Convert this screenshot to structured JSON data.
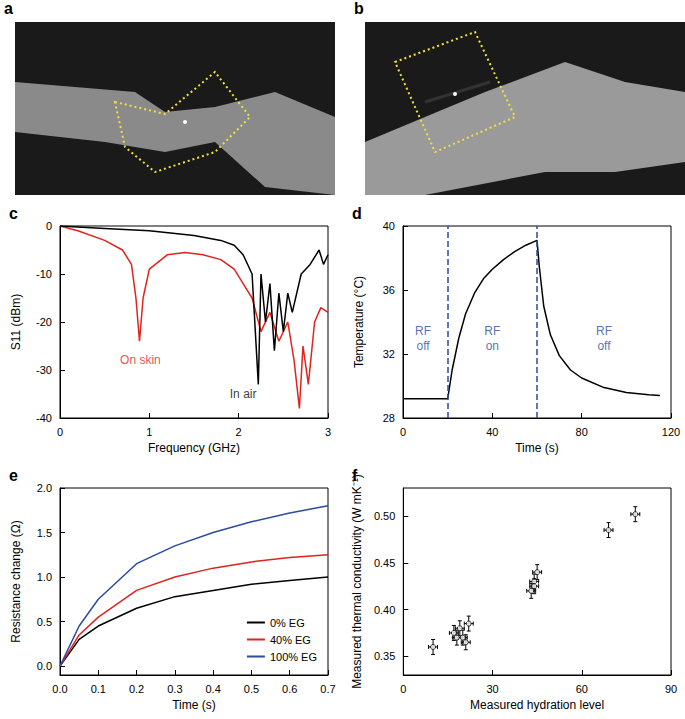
{
  "images": [
    {
      "panel": "a"
    },
    {
      "panel": "b"
    }
  ],
  "chart_data": [
    {
      "panel": "c",
      "type": "line",
      "x_label": "Frequency (GHz)",
      "y_label": "S11 (dBm)",
      "xlim": [
        0,
        3
      ],
      "xticks": [
        0,
        1,
        2,
        3
      ],
      "ylim": [
        -40,
        0
      ],
      "yticks": [
        0,
        -10,
        -20,
        -30,
        -40
      ],
      "grid": false,
      "series": [
        {
          "color": "#e0231c",
          "x": [
            0,
            0.2,
            0.5,
            0.7,
            0.8,
            0.85,
            0.89,
            0.93,
            1.0,
            1.2,
            1.4,
            1.6,
            1.8,
            1.95,
            2.05,
            2.15,
            2.25,
            2.35,
            2.45,
            2.55,
            2.62,
            2.68,
            2.72,
            2.78,
            2.85,
            2.92,
            3.0
          ],
          "values": [
            0,
            -1,
            -3,
            -5,
            -8,
            -15,
            -24,
            -15,
            -9,
            -6,
            -5.5,
            -6,
            -7,
            -9,
            -12,
            -15,
            -22,
            -18,
            -24,
            -20,
            -28,
            -38,
            -25,
            -33,
            -20,
            -17,
            -18
          ]
        },
        {
          "color": "#000000",
          "x": [
            0,
            0.5,
            1.0,
            1.5,
            1.8,
            1.95,
            2.05,
            2.15,
            2.22,
            2.25,
            2.3,
            2.35,
            2.4,
            2.45,
            2.5,
            2.55,
            2.6,
            2.7,
            2.8,
            2.9,
            2.95,
            3.0
          ],
          "values": [
            0,
            -0.5,
            -1,
            -2,
            -3,
            -4,
            -6,
            -10,
            -33,
            -10,
            -20,
            -12,
            -26,
            -14,
            -22,
            -14,
            -18,
            -10,
            -8,
            -5,
            -8,
            -6
          ]
        }
      ],
      "annotations": [
        {
          "text": "On skin",
          "x": 0.9,
          "y": -28,
          "color": "#e0231c"
        },
        {
          "text": "In air",
          "x": 2.05,
          "y": -35,
          "color": "#000000"
        }
      ]
    },
    {
      "panel": "d",
      "type": "line",
      "x_label": "Time (s)",
      "y_label": "Temperature (°C)",
      "xlim": [
        0,
        120
      ],
      "xticks": [
        0,
        40,
        80,
        120
      ],
      "ylim": [
        28,
        40
      ],
      "yticks": [
        28,
        32,
        36,
        40
      ],
      "grid": false,
      "series": [
        {
          "color": "#000000",
          "x": [
            0,
            10,
            20,
            22,
            25,
            28,
            32,
            36,
            40,
            45,
            50,
            55,
            60,
            61,
            63,
            66,
            70,
            75,
            80,
            90,
            100,
            110,
            115
          ],
          "values": [
            29.2,
            29.2,
            29.2,
            31,
            33,
            34.5,
            35.8,
            36.7,
            37.3,
            37.9,
            38.4,
            38.8,
            39.1,
            37.5,
            35,
            33.2,
            31.9,
            31,
            30.5,
            29.9,
            29.6,
            29.45,
            29.4
          ]
        }
      ],
      "vlines": [
        20,
        60
      ],
      "annotations": [
        {
          "text": "RF\noff",
          "x": 9,
          "y": 33,
          "color": "#2b4ba0"
        },
        {
          "text": "RF\non",
          "x": 40,
          "y": 33,
          "color": "#2b4ba0"
        },
        {
          "text": "RF\noff",
          "x": 90,
          "y": 33,
          "color": "#2b4ba0"
        }
      ]
    },
    {
      "panel": "e",
      "type": "line",
      "x_label": "Time (s)",
      "y_label": "Resistance change (Ω)",
      "xlim": [
        0,
        0.7
      ],
      "xticks": [
        {
          "value": 0,
          "label": "0.0"
        },
        0.1,
        0.2,
        0.3,
        0.4,
        0.5,
        0.6,
        0.7
      ],
      "ylim": [
        -0.1,
        2.0
      ],
      "yticks": [
        {
          "value": 0,
          "label": "0.0"
        },
        0.5,
        {
          "value": 1,
          "label": "1.0"
        },
        1.5,
        {
          "value": 2,
          "label": "2.0"
        }
      ],
      "grid": false,
      "legend": "lower right",
      "series": [
        {
          "name": "0% EG",
          "color": "#000000",
          "x": [
            0,
            0.05,
            0.1,
            0.2,
            0.3,
            0.4,
            0.5,
            0.6,
            0.7
          ],
          "values": [
            0,
            0.3,
            0.45,
            0.65,
            0.78,
            0.85,
            0.92,
            0.96,
            1.0
          ]
        },
        {
          "name": "40% EG",
          "color": "#e0231c",
          "x": [
            0,
            0.05,
            0.1,
            0.2,
            0.3,
            0.4,
            0.5,
            0.6,
            0.7
          ],
          "values": [
            0,
            0.35,
            0.55,
            0.85,
            1.0,
            1.1,
            1.17,
            1.22,
            1.25
          ]
        },
        {
          "name": "100% EG",
          "color": "#2b4ba0",
          "x": [
            0,
            0.05,
            0.1,
            0.2,
            0.3,
            0.4,
            0.5,
            0.6,
            0.7
          ],
          "values": [
            0,
            0.45,
            0.75,
            1.15,
            1.35,
            1.5,
            1.62,
            1.72,
            1.8
          ]
        }
      ]
    },
    {
      "panel": "f",
      "type": "scatter",
      "x_label": "Measured hydration level",
      "y_label": "Measured thermal conductivity (W mK⁻¹)",
      "xlim": [
        0,
        90
      ],
      "xticks": [
        0,
        30,
        60,
        90
      ],
      "ylim": [
        0.33,
        0.53
      ],
      "yticks": [
        0.35,
        {
          "value": 0.4,
          "label": "0.40"
        },
        0.45,
        {
          "value": 0.5,
          "label": "0.50"
        }
      ],
      "grid": false,
      "marker": "circle",
      "color": "#000000",
      "x": [
        10,
        17,
        18,
        19,
        20,
        21,
        22,
        43,
        44,
        44,
        45,
        69,
        78
      ],
      "values": [
        0.36,
        0.375,
        0.37,
        0.38,
        0.37,
        0.365,
        0.385,
        0.42,
        0.43,
        0.425,
        0.44,
        0.485,
        0.502
      ],
      "x_error": [
        1.5,
        1.5,
        1.5,
        1.5,
        1.5,
        1.5,
        1.5,
        1.5,
        1.5,
        1.5,
        1.5,
        1.5,
        1.5
      ],
      "y_error": [
        0.008,
        0.008,
        0.008,
        0.008,
        0.008,
        0.008,
        0.008,
        0.008,
        0.008,
        0.008,
        0.008,
        0.008,
        0.008
      ]
    }
  ]
}
